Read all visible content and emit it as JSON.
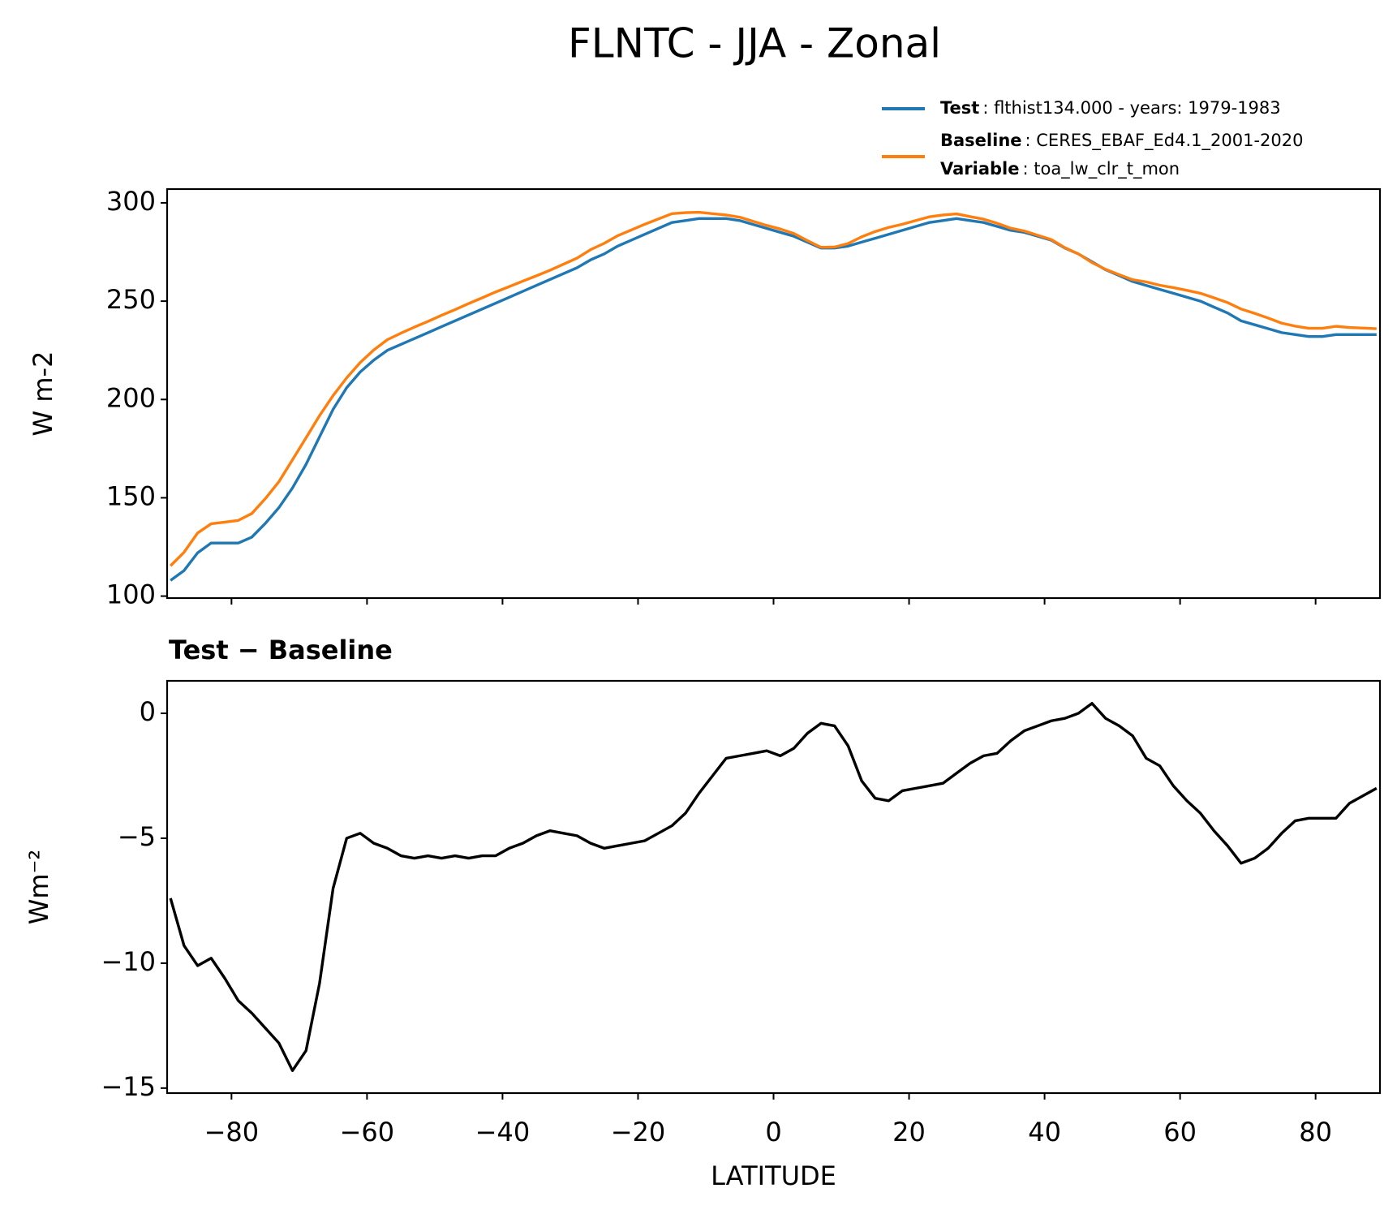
{
  "chart_data": [
    {
      "type": "line",
      "title": "FLNTC - JJA - Zonal",
      "ylabel": "W m-2",
      "x": [
        -89,
        -87,
        -85,
        -83,
        -81,
        -79,
        -77,
        -75,
        -73,
        -71,
        -69,
        -67,
        -65,
        -63,
        -61,
        -59,
        -57,
        -55,
        -53,
        -51,
        -49,
        -47,
        -45,
        -43,
        -41,
        -39,
        -37,
        -35,
        -33,
        -31,
        -29,
        -27,
        -25,
        -23,
        -21,
        -19,
        -17,
        -15,
        -13,
        -11,
        -9,
        -7,
        -5,
        -3,
        -1,
        1,
        3,
        5,
        7,
        9,
        11,
        13,
        15,
        17,
        19,
        21,
        23,
        25,
        27,
        29,
        31,
        33,
        35,
        37,
        39,
        41,
        43,
        45,
        47,
        49,
        51,
        53,
        55,
        57,
        59,
        61,
        63,
        65,
        67,
        69,
        71,
        73,
        75,
        77,
        79,
        81,
        83,
        85,
        87,
        89
      ],
      "series": [
        {
          "name": "Test",
          "description": ": flthist134.000 - years: 1979-1983",
          "color": "#1f77b4",
          "values": [
            108,
            113,
            122,
            127,
            127,
            127,
            130,
            137,
            145,
            155,
            167,
            181,
            195,
            206,
            214,
            220,
            225,
            228,
            231,
            234,
            237,
            240,
            243,
            246,
            249,
            252,
            255,
            258,
            261,
            264,
            267,
            271,
            274,
            278,
            281,
            284,
            287,
            290,
            291,
            292,
            292,
            292,
            291,
            289,
            287,
            285,
            283,
            280,
            277,
            277,
            278,
            280,
            282,
            284,
            286,
            288,
            290,
            291,
            292,
            291,
            290,
            288,
            286,
            285,
            283,
            281,
            277,
            274,
            270,
            266,
            263,
            260,
            258,
            256,
            254,
            252,
            250,
            247,
            244,
            240,
            238,
            236,
            234,
            233,
            232,
            232,
            233,
            233,
            233,
            233
          ]
        },
        {
          "name": "Baseline",
          "description": ": CERES_EBAF_Ed4.1_2001-2020",
          "color": "#ff7f0e",
          "values": [
            115.4,
            122.3,
            132.1,
            136.8,
            137.6,
            138.5,
            142,
            149.6,
            158.2,
            169.3,
            180.5,
            191.8,
            202,
            211,
            218.8,
            225.2,
            230.4,
            233.7,
            236.8,
            239.7,
            242.8,
            245.7,
            248.8,
            251.7,
            254.7,
            257.4,
            260.2,
            262.9,
            265.7,
            268.8,
            271.9,
            276.2,
            279.4,
            283.3,
            286.2,
            289.1,
            291.8,
            294.5,
            295,
            295.2,
            294.5,
            293.8,
            292.7,
            290.6,
            288.5,
            286.7,
            284.4,
            280.8,
            277.4,
            277.5,
            279.3,
            282.7,
            285.4,
            287.5,
            289.1,
            291,
            292.9,
            293.8,
            294.4,
            293,
            291.7,
            289.6,
            287.1,
            285.7,
            283.5,
            281.3,
            277.2,
            274,
            269.6,
            266.2,
            263.5,
            260.9,
            259.8,
            258.1,
            256.9,
            255.5,
            254,
            251.7,
            249.3,
            246,
            243.8,
            241.4,
            238.8,
            237.3,
            236.2,
            236.2,
            237.2,
            236.6,
            236.3,
            236
          ]
        }
      ],
      "legend_note": {
        "name": "Variable",
        "text": ": toa_lw_clr_t_mon"
      },
      "xlim": [
        -89.5,
        89.5
      ],
      "xticks": [
        -80,
        -60,
        -40,
        -20,
        0,
        20,
        40,
        60,
        80
      ],
      "ylim": [
        99,
        307
      ],
      "yticks": [
        100,
        150,
        200,
        250,
        300
      ],
      "grid": false
    },
    {
      "type": "line",
      "title": "Test − Baseline",
      "ylabel": "Wm⁻²",
      "xlabel": "LATITUDE",
      "color": "#000000",
      "x": [
        -89,
        -87,
        -85,
        -83,
        -81,
        -79,
        -77,
        -75,
        -73,
        -71,
        -69,
        -67,
        -65,
        -63,
        -61,
        -59,
        -57,
        -55,
        -53,
        -51,
        -49,
        -47,
        -45,
        -43,
        -41,
        -39,
        -37,
        -35,
        -33,
        -31,
        -29,
        -27,
        -25,
        -23,
        -21,
        -19,
        -17,
        -15,
        -13,
        -11,
        -9,
        -7,
        -5,
        -3,
        -1,
        1,
        3,
        5,
        7,
        9,
        11,
        13,
        15,
        17,
        19,
        21,
        23,
        25,
        27,
        29,
        31,
        33,
        35,
        37,
        39,
        41,
        43,
        45,
        47,
        49,
        51,
        53,
        55,
        57,
        59,
        61,
        63,
        65,
        67,
        69,
        71,
        73,
        75,
        77,
        79,
        81,
        83,
        85,
        87,
        89
      ],
      "values": [
        -7.4,
        -9.3,
        -10.1,
        -9.8,
        -10.6,
        -11.5,
        -12.0,
        -12.6,
        -13.2,
        -14.3,
        -13.5,
        -10.8,
        -7.0,
        -5.0,
        -4.8,
        -5.2,
        -5.4,
        -5.7,
        -5.8,
        -5.7,
        -5.8,
        -5.7,
        -5.8,
        -5.7,
        -5.7,
        -5.4,
        -5.2,
        -4.9,
        -4.7,
        -4.8,
        -4.9,
        -5.2,
        -5.4,
        -5.3,
        -5.2,
        -5.1,
        -4.8,
        -4.5,
        -4.0,
        -3.2,
        -2.5,
        -1.8,
        -1.7,
        -1.6,
        -1.5,
        -1.7,
        -1.4,
        -0.8,
        -0.4,
        -0.5,
        -1.3,
        -2.7,
        -3.4,
        -3.5,
        -3.1,
        -3.0,
        -2.9,
        -2.8,
        -2.4,
        -2.0,
        -1.7,
        -1.6,
        -1.1,
        -0.7,
        -0.5,
        -0.3,
        -0.2,
        0.0,
        0.4,
        -0.2,
        -0.5,
        -0.9,
        -1.8,
        -2.1,
        -2.9,
        -3.5,
        -4.0,
        -4.7,
        -5.3,
        -6.0,
        -5.8,
        -5.4,
        -4.8,
        -4.3,
        -4.2,
        -4.2,
        -4.2,
        -3.6,
        -3.3,
        -3.0
      ],
      "xlim": [
        -89.5,
        89.5
      ],
      "xticks": [
        {
          "value": -80,
          "label": "−80"
        },
        {
          "value": -60,
          "label": "−60"
        },
        {
          "value": -40,
          "label": "−40"
        },
        {
          "value": -20,
          "label": "−20"
        },
        0,
        20,
        40,
        60,
        80
      ],
      "ylim": [
        -15.2,
        1.3
      ],
      "yticks": [
        0,
        {
          "value": -5,
          "label": "−5"
        },
        {
          "value": -10,
          "label": "−10"
        },
        {
          "value": -15,
          "label": "−15"
        }
      ],
      "grid": false
    }
  ]
}
